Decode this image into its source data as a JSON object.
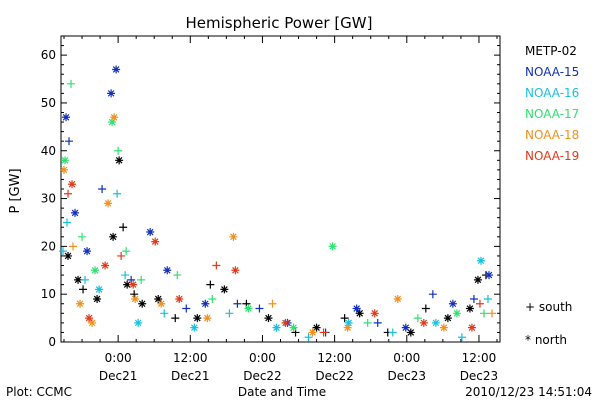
{
  "chart_data": {
    "type": "scatter",
    "title": "Hemispheric Power [GW]",
    "ylabel": "P [GW]",
    "xlabel": "Date and Time",
    "ylim": [
      0,
      64
    ],
    "xlim": [
      "2010-12-20T14:30",
      "2010-12-23T15:30"
    ],
    "yticks": [
      0,
      10,
      20,
      30,
      40,
      50,
      60
    ],
    "xticks": [
      {
        "t": "2010-12-21T00:00",
        "time": "0:00",
        "date": "Dec21"
      },
      {
        "t": "2010-12-21T12:00",
        "time": "12:00",
        "date": "Dec21"
      },
      {
        "t": "2010-12-22T00:00",
        "time": "0:00",
        "date": "Dec22"
      },
      {
        "t": "2010-12-22T12:00",
        "time": "12:00",
        "date": "Dec22"
      },
      {
        "t": "2010-12-23T00:00",
        "time": "0:00",
        "date": "Dec23"
      },
      {
        "t": "2010-12-23T12:00",
        "time": "12:00",
        "date": "Dec23"
      }
    ],
    "marker_legend": [
      {
        "symbol": "+",
        "label": "south"
      },
      {
        "symbol": "*",
        "label": "north"
      }
    ],
    "series": [
      {
        "name": "METP-02",
        "color": "#000000",
        "points": [
          {
            "t": "2010-12-20T15:40",
            "y": 18,
            "m": "*"
          },
          {
            "t": "2010-12-20T17:20",
            "y": 13,
            "m": "*"
          },
          {
            "t": "2010-12-20T18:10",
            "y": 11,
            "m": "+"
          },
          {
            "t": "2010-12-20T20:30",
            "y": 9,
            "m": "*"
          },
          {
            "t": "2010-12-20T23:10",
            "y": 22,
            "m": "*"
          },
          {
            "t": "2010-12-21T00:10",
            "y": 38,
            "m": "*"
          },
          {
            "t": "2010-12-21T00:50",
            "y": 24,
            "m": "+"
          },
          {
            "t": "2010-12-21T01:30",
            "y": 12,
            "m": "*"
          },
          {
            "t": "2010-12-21T02:40",
            "y": 10,
            "m": "+"
          },
          {
            "t": "2010-12-21T04:00",
            "y": 8,
            "m": "*"
          },
          {
            "t": "2010-12-21T06:40",
            "y": 9,
            "m": "*"
          },
          {
            "t": "2010-12-21T09:30",
            "y": 5,
            "m": "+"
          },
          {
            "t": "2010-12-21T13:10",
            "y": 5,
            "m": "*"
          },
          {
            "t": "2010-12-21T15:20",
            "y": 12,
            "m": "+"
          },
          {
            "t": "2010-12-21T17:40",
            "y": 11,
            "m": "*"
          },
          {
            "t": "2010-12-21T21:20",
            "y": 8,
            "m": "+"
          },
          {
            "t": "2010-12-22T01:00",
            "y": 5,
            "m": "*"
          },
          {
            "t": "2010-12-22T05:30",
            "y": 2,
            "m": "+"
          },
          {
            "t": "2010-12-22T09:00",
            "y": 3,
            "m": "*"
          },
          {
            "t": "2010-12-22T13:40",
            "y": 5,
            "m": "+"
          },
          {
            "t": "2010-12-22T16:10",
            "y": 6,
            "m": "*"
          },
          {
            "t": "2010-12-22T20:50",
            "y": 2,
            "m": "+"
          },
          {
            "t": "2010-12-23T00:40",
            "y": 2,
            "m": "*"
          },
          {
            "t": "2010-12-23T03:10",
            "y": 7,
            "m": "+"
          },
          {
            "t": "2010-12-23T06:50",
            "y": 5,
            "m": "*"
          },
          {
            "t": "2010-12-23T10:30",
            "y": 7,
            "m": "*"
          },
          {
            "t": "2010-12-23T11:50",
            "y": 13,
            "m": "*"
          },
          {
            "t": "2010-12-23T13:10",
            "y": 14,
            "m": "+"
          }
        ]
      },
      {
        "name": "NOAA-15",
        "color": "#1030b8",
        "points": [
          {
            "t": "2010-12-20T15:20",
            "y": 47,
            "m": "*"
          },
          {
            "t": "2010-12-20T15:50",
            "y": 42,
            "m": "+"
          },
          {
            "t": "2010-12-20T16:50",
            "y": 27,
            "m": "*"
          },
          {
            "t": "2010-12-20T18:50",
            "y": 19,
            "m": "*"
          },
          {
            "t": "2010-12-20T21:20",
            "y": 32,
            "m": "+"
          },
          {
            "t": "2010-12-20T22:50",
            "y": 52,
            "m": "*"
          },
          {
            "t": "2010-12-20T23:40",
            "y": 57,
            "m": "*"
          },
          {
            "t": "2010-12-21T02:10",
            "y": 13,
            "m": "+"
          },
          {
            "t": "2010-12-21T05:20",
            "y": 23,
            "m": "*"
          },
          {
            "t": "2010-12-21T08:10",
            "y": 15,
            "m": "*"
          },
          {
            "t": "2010-12-21T11:20",
            "y": 7,
            "m": "+"
          },
          {
            "t": "2010-12-21T14:30",
            "y": 8,
            "m": "*"
          },
          {
            "t": "2010-12-21T19:50",
            "y": 8,
            "m": "+"
          },
          {
            "t": "2010-12-21T23:30",
            "y": 7,
            "m": "+"
          },
          {
            "t": "2010-12-22T04:10",
            "y": 4,
            "m": "*"
          },
          {
            "t": "2010-12-22T10:30",
            "y": 2,
            "m": "+"
          },
          {
            "t": "2010-12-22T15:40",
            "y": 7,
            "m": "*"
          },
          {
            "t": "2010-12-22T19:10",
            "y": 4,
            "m": "+"
          },
          {
            "t": "2010-12-22T23:50",
            "y": 3,
            "m": "*"
          },
          {
            "t": "2010-12-23T04:20",
            "y": 10,
            "m": "+"
          },
          {
            "t": "2010-12-23T07:40",
            "y": 8,
            "m": "*"
          },
          {
            "t": "2010-12-23T11:10",
            "y": 9,
            "m": "+"
          },
          {
            "t": "2010-12-23T13:40",
            "y": 14,
            "m": "*"
          }
        ]
      },
      {
        "name": "NOAA-16",
        "color": "#18c0e0",
        "points": [
          {
            "t": "2010-12-20T14:50",
            "y": 19,
            "m": "+"
          },
          {
            "t": "2010-12-20T15:30",
            "y": 25,
            "m": "+"
          },
          {
            "t": "2010-12-20T18:30",
            "y": 13,
            "m": "+"
          },
          {
            "t": "2010-12-20T20:50",
            "y": 11,
            "m": "*"
          },
          {
            "t": "2010-12-20T23:50",
            "y": 31,
            "m": "+"
          },
          {
            "t": "2010-12-21T01:10",
            "y": 14,
            "m": "+"
          },
          {
            "t": "2010-12-21T03:20",
            "y": 4,
            "m": "*"
          },
          {
            "t": "2010-12-21T07:40",
            "y": 6,
            "m": "+"
          },
          {
            "t": "2010-12-21T12:40",
            "y": 3,
            "m": "*"
          },
          {
            "t": "2010-12-21T18:30",
            "y": 6,
            "m": "+"
          },
          {
            "t": "2010-12-22T02:20",
            "y": 3,
            "m": "*"
          },
          {
            "t": "2010-12-22T07:40",
            "y": 1,
            "m": "+"
          },
          {
            "t": "2010-12-22T14:20",
            "y": 4,
            "m": "*"
          },
          {
            "t": "2010-12-22T21:40",
            "y": 2,
            "m": "+"
          },
          {
            "t": "2010-12-23T04:50",
            "y": 4,
            "m": "*"
          },
          {
            "t": "2010-12-23T09:10",
            "y": 1,
            "m": "+"
          },
          {
            "t": "2010-12-23T12:20",
            "y": 17,
            "m": "*"
          },
          {
            "t": "2010-12-23T13:30",
            "y": 9,
            "m": "+"
          }
        ]
      },
      {
        "name": "NOAA-17",
        "color": "#30e070",
        "points": [
          {
            "t": "2010-12-20T15:10",
            "y": 38,
            "m": "*"
          },
          {
            "t": "2010-12-20T16:10",
            "y": 54,
            "m": "+"
          },
          {
            "t": "2010-12-20T18:00",
            "y": 22,
            "m": "+"
          },
          {
            "t": "2010-12-20T20:10",
            "y": 15,
            "m": "*"
          },
          {
            "t": "2010-12-20T23:00",
            "y": 46,
            "m": "*"
          },
          {
            "t": "2010-12-21T00:00",
            "y": 40,
            "m": "+"
          },
          {
            "t": "2010-12-21T01:20",
            "y": 19,
            "m": "+"
          },
          {
            "t": "2010-12-21T03:50",
            "y": 13,
            "m": "+"
          },
          {
            "t": "2010-12-21T09:50",
            "y": 14,
            "m": "+"
          },
          {
            "t": "2010-12-21T15:40",
            "y": 9,
            "m": "+"
          },
          {
            "t": "2010-12-21T21:40",
            "y": 7,
            "m": "*"
          },
          {
            "t": "2010-12-22T05:10",
            "y": 3,
            "m": "*"
          },
          {
            "t": "2010-12-22T11:40",
            "y": 20,
            "m": "*"
          },
          {
            "t": "2010-12-22T17:30",
            "y": 4,
            "m": "+"
          },
          {
            "t": "2010-12-23T01:50",
            "y": 5,
            "m": "+"
          },
          {
            "t": "2010-12-23T08:20",
            "y": 6,
            "m": "*"
          },
          {
            "t": "2010-12-23T12:50",
            "y": 6,
            "m": "+"
          }
        ]
      },
      {
        "name": "NOAA-18",
        "color": "#f09020",
        "points": [
          {
            "t": "2010-12-20T15:00",
            "y": 36,
            "m": "*"
          },
          {
            "t": "2010-12-20T16:30",
            "y": 20,
            "m": "+"
          },
          {
            "t": "2010-12-20T17:40",
            "y": 8,
            "m": "*"
          },
          {
            "t": "2010-12-20T19:40",
            "y": 4,
            "m": "*"
          },
          {
            "t": "2010-12-20T22:20",
            "y": 29,
            "m": "*"
          },
          {
            "t": "2010-12-20T23:20",
            "y": 47,
            "m": "*"
          },
          {
            "t": "2010-12-21T02:50",
            "y": 9,
            "m": "*"
          },
          {
            "t": "2010-12-21T07:10",
            "y": 8,
            "m": "*"
          },
          {
            "t": "2010-12-21T14:50",
            "y": 5,
            "m": "*"
          },
          {
            "t": "2010-12-21T19:10",
            "y": 22,
            "m": "*"
          },
          {
            "t": "2010-12-22T01:40",
            "y": 8,
            "m": "+"
          },
          {
            "t": "2010-12-22T08:20",
            "y": 2,
            "m": "*"
          },
          {
            "t": "2010-12-22T14:10",
            "y": 3,
            "m": "*"
          },
          {
            "t": "2010-12-22T22:30",
            "y": 9,
            "m": "*"
          },
          {
            "t": "2010-12-23T06:10",
            "y": 3,
            "m": "*"
          },
          {
            "t": "2010-12-23T14:10",
            "y": 6,
            "m": "+"
          }
        ]
      },
      {
        "name": "NOAA-19",
        "color": "#e03a1a",
        "points": [
          {
            "t": "2010-12-20T15:40",
            "y": 31,
            "m": "+"
          },
          {
            "t": "2010-12-20T16:20",
            "y": 33,
            "m": "*"
          },
          {
            "t": "2010-12-20T19:10",
            "y": 5,
            "m": "*"
          },
          {
            "t": "2010-12-20T21:50",
            "y": 16,
            "m": "*"
          },
          {
            "t": "2010-12-21T00:30",
            "y": 18,
            "m": "+"
          },
          {
            "t": "2010-12-21T02:30",
            "y": 12,
            "m": "*"
          },
          {
            "t": "2010-12-21T06:10",
            "y": 21,
            "m": "*"
          },
          {
            "t": "2010-12-21T10:10",
            "y": 9,
            "m": "*"
          },
          {
            "t": "2010-12-21T16:20",
            "y": 16,
            "m": "+"
          },
          {
            "t": "2010-12-21T19:30",
            "y": 15,
            "m": "*"
          },
          {
            "t": "2010-12-22T03:50",
            "y": 4,
            "m": "*"
          },
          {
            "t": "2010-12-22T10:10",
            "y": 2,
            "m": "+"
          },
          {
            "t": "2010-12-22T18:40",
            "y": 6,
            "m": "*"
          },
          {
            "t": "2010-12-23T02:50",
            "y": 4,
            "m": "*"
          },
          {
            "t": "2010-12-23T10:50",
            "y": 3,
            "m": "*"
          },
          {
            "t": "2010-12-23T12:10",
            "y": 8,
            "m": "+"
          }
        ]
      }
    ]
  },
  "footer": {
    "left": "Plot: CCMC",
    "center": "Date and Time",
    "right": "2010/12/23 14:51:04"
  },
  "marker_legend_labels": {
    "south": "+ south",
    "north": "* north"
  }
}
